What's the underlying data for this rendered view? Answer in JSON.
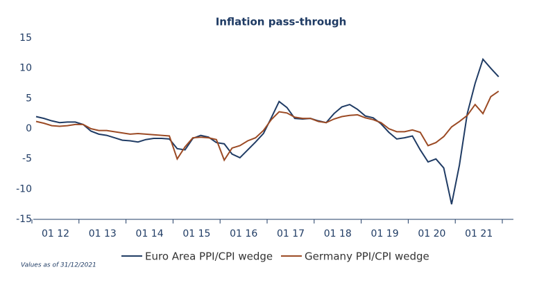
{
  "chart_data": {
    "type": "line",
    "title": "Inflation pass-through",
    "footnote": "Values as of 31/12/2021",
    "categories": [
      "01 12",
      null,
      null,
      null,
      null,
      null,
      "01 13",
      null,
      null,
      null,
      null,
      null,
      "01 14",
      null,
      null,
      null,
      null,
      null,
      "01 15",
      null,
      null,
      null,
      null,
      null,
      "01 16",
      null,
      null,
      null,
      null,
      null,
      "01 17",
      null,
      null,
      null,
      null,
      null,
      "01 18",
      null,
      null,
      null,
      null,
      null,
      "01 19",
      null,
      null,
      null,
      null,
      null,
      "01 20",
      null,
      null,
      null,
      null,
      null,
      "01 21",
      null,
      null,
      null,
      null,
      null
    ],
    "series": [
      {
        "name": "Euro Area PPI/CPI wedge",
        "color": "#1f3b64",
        "values": [
          2.0,
          1.7,
          1.3,
          1.0,
          1.1,
          1.1,
          0.7,
          -0.4,
          -0.9,
          -1.1,
          -1.5,
          -1.9,
          -2.0,
          -2.2,
          -1.8,
          -1.6,
          -1.6,
          -1.7,
          -3.3,
          -3.5,
          -1.6,
          -1.1,
          -1.4,
          -2.3,
          -2.5,
          -4.2,
          -4.8,
          -3.5,
          -2.2,
          -0.8,
          1.8,
          4.5,
          3.5,
          1.7,
          1.6,
          1.7,
          1.3,
          1.0,
          2.5,
          3.6,
          4.0,
          3.2,
          2.1,
          1.8,
          0.8,
          -0.6,
          -1.7,
          -1.5,
          -1.2,
          -3.5,
          -5.5,
          -5.0,
          -6.5,
          -12.5,
          -6.0,
          2.5,
          7.5,
          11.5,
          10.0,
          8.6
        ]
      },
      {
        "name": "Germany PPI/CPI wedge",
        "color": "#9b4a24",
        "values": [
          1.2,
          0.9,
          0.5,
          0.4,
          0.5,
          0.7,
          0.7,
          0.0,
          -0.3,
          -0.3,
          -0.5,
          -0.7,
          -0.9,
          -0.8,
          -0.9,
          -1.0,
          -1.1,
          -1.2,
          -5.0,
          -3.0,
          -1.5,
          -1.4,
          -1.5,
          -1.8,
          -5.2,
          -3.2,
          -2.8,
          -2.0,
          -1.5,
          -0.3,
          1.5,
          2.8,
          2.6,
          1.9,
          1.7,
          1.7,
          1.2,
          1.0,
          1.6,
          2.0,
          2.2,
          2.3,
          1.8,
          1.5,
          1.0,
          0.0,
          -0.5,
          -0.5,
          -0.2,
          -0.6,
          -2.8,
          -2.3,
          -1.3,
          0.3,
          1.2,
          2.2,
          4.0,
          2.5,
          5.3,
          6.2
        ]
      }
    ],
    "ylim": [
      -15,
      15
    ],
    "yticks": [
      15,
      10,
      5,
      0,
      -5,
      -10,
      -15
    ],
    "grid": false,
    "legend": "bottom"
  }
}
